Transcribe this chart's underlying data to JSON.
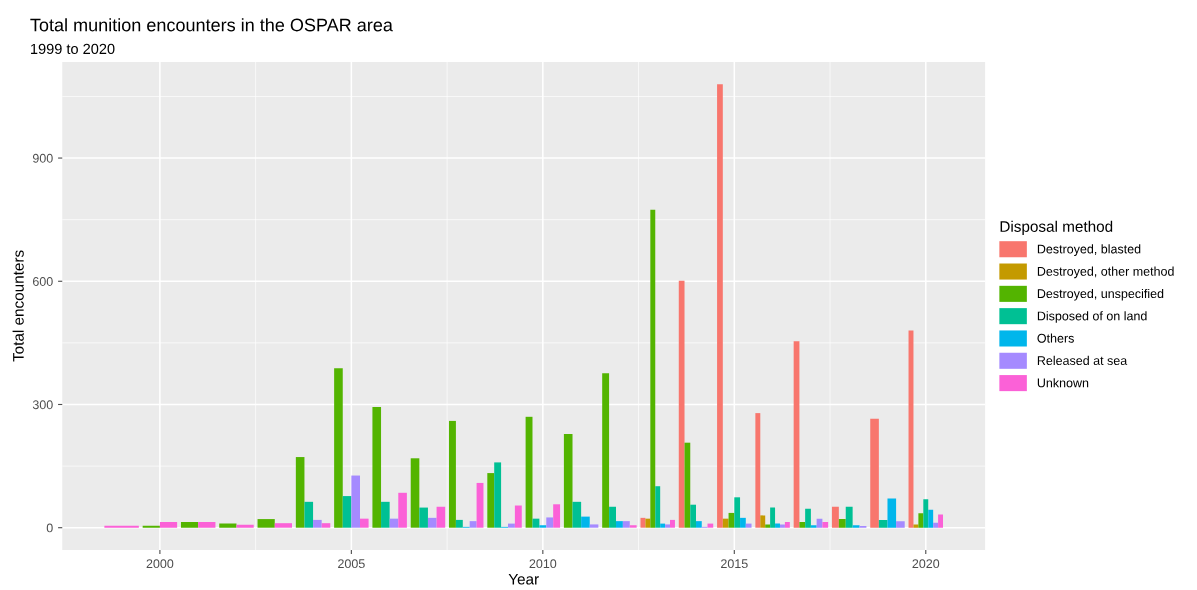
{
  "chart_data": {
    "type": "bar",
    "title": "Total munition encounters in the OSPAR area",
    "subtitle": "1999 to 2020",
    "xlabel": "Year",
    "ylabel": "Total encounters",
    "legend_title": "Disposal method",
    "x": [
      1999,
      2000,
      2001,
      2002,
      2003,
      2004,
      2005,
      2006,
      2007,
      2008,
      2009,
      2010,
      2011,
      2012,
      2013,
      2014,
      2015,
      2016,
      2017,
      2018,
      2019,
      2020
    ],
    "series": [
      {
        "name": "Destroyed, blasted",
        "color": "#f8766d",
        "values": [
          null,
          null,
          null,
          null,
          null,
          null,
          null,
          null,
          null,
          null,
          null,
          null,
          null,
          null,
          24,
          601,
          1080,
          279,
          454,
          51,
          265,
          480
        ]
      },
      {
        "name": "Destroyed, other method",
        "color": "#c49a00",
        "values": [
          null,
          null,
          null,
          null,
          null,
          null,
          null,
          null,
          null,
          null,
          null,
          null,
          null,
          null,
          22,
          null,
          22,
          30,
          null,
          null,
          null,
          8
        ]
      },
      {
        "name": "Destroyed, unspecified",
        "color": "#53b400",
        "values": [
          null,
          5,
          14,
          10,
          21,
          172,
          388,
          294,
          169,
          260,
          133,
          270,
          228,
          376,
          774,
          207,
          36,
          8,
          14,
          21,
          null,
          35
        ]
      },
      {
        "name": "Disposed of on land",
        "color": "#00c094",
        "values": [
          null,
          null,
          null,
          null,
          null,
          63,
          77,
          63,
          49,
          19,
          159,
          22,
          63,
          51,
          101,
          56,
          74,
          49,
          46,
          51,
          19,
          69
        ]
      },
      {
        "name": "Others",
        "color": "#00b6eb",
        "values": [
          null,
          null,
          null,
          null,
          null,
          null,
          null,
          null,
          null,
          2,
          2,
          6,
          27,
          16,
          10,
          16,
          24,
          10,
          6,
          6,
          71,
          44
        ]
      },
      {
        "name": "Released at sea",
        "color": "#a58aff",
        "values": [
          null,
          null,
          null,
          null,
          null,
          19,
          127,
          22,
          24,
          16,
          10,
          25,
          8,
          16,
          8,
          2,
          10,
          8,
          22,
          4,
          16,
          12
        ]
      },
      {
        "name": "Unknown",
        "color": "#fb61d7",
        "values": [
          5,
          14,
          14,
          7,
          11,
          11,
          22,
          85,
          51,
          109,
          54,
          57,
          null,
          6,
          19,
          10,
          null,
          14,
          14,
          null,
          null,
          32
        ]
      }
    ],
    "xlim": [
      1997.45,
      2021.55
    ],
    "xticks": [
      2000,
      2005,
      2010,
      2015,
      2020
    ],
    "ylim": [
      -54,
      1134
    ],
    "yticks": [
      0,
      300,
      600,
      900
    ],
    "grid": true,
    "legend": "right"
  }
}
